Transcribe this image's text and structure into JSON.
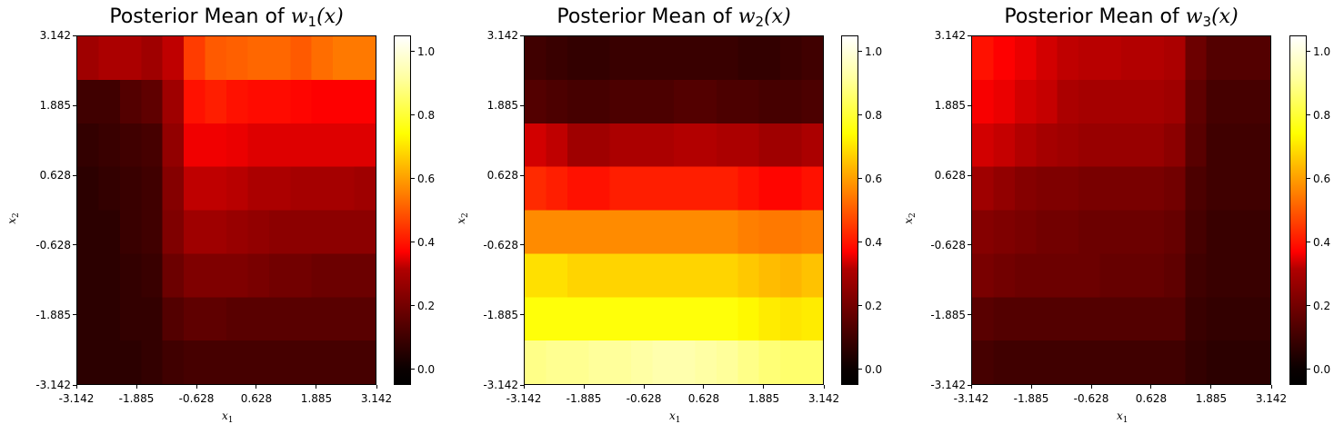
{
  "chart_data": [
    {
      "type": "heatmap",
      "title": "Posterior Mean of w1(x)",
      "title_main": "Posterior Mean of ",
      "title_var": "w",
      "title_sub": "1",
      "title_arg": "(x)",
      "xlabel": "x",
      "xlabel_sub": "1",
      "ylabel": "x",
      "ylabel_sub": "2",
      "xlim": [
        -3.142,
        3.142
      ],
      "ylim": [
        -3.142,
        3.142
      ],
      "xticks": [
        "-3.142",
        "-1.885",
        "-0.628",
        "0.628",
        "1.885",
        "3.142"
      ],
      "yticks": [
        "-3.142",
        "-1.885",
        "-0.628",
        "0.628",
        "1.885",
        "3.142"
      ],
      "colormap": "hot",
      "clim": [
        -0.05,
        1.05
      ],
      "colorbar_ticks": [
        "0.0",
        "0.2",
        "0.4",
        "0.6",
        "0.8",
        "1.0"
      ],
      "rows_top_to_bottom": [
        [
          0.2,
          0.22,
          0.22,
          0.2,
          0.25,
          0.45,
          0.5,
          0.51,
          0.52,
          0.52,
          0.5,
          0.53,
          0.55,
          0.55
        ],
        [
          0.05,
          0.05,
          0.08,
          0.1,
          0.2,
          0.38,
          0.4,
          0.38,
          0.37,
          0.37,
          0.36,
          0.35,
          0.35,
          0.35
        ],
        [
          0.03,
          0.04,
          0.05,
          0.06,
          0.18,
          0.33,
          0.33,
          0.32,
          0.3,
          0.3,
          0.3,
          0.3,
          0.3,
          0.3
        ],
        [
          0.02,
          0.03,
          0.04,
          0.05,
          0.16,
          0.25,
          0.25,
          0.24,
          0.22,
          0.22,
          0.21,
          0.21,
          0.21,
          0.2
        ],
        [
          0.02,
          0.02,
          0.04,
          0.05,
          0.15,
          0.2,
          0.2,
          0.19,
          0.18,
          0.17,
          0.17,
          0.17,
          0.17,
          0.17
        ],
        [
          0.02,
          0.02,
          0.03,
          0.04,
          0.12,
          0.15,
          0.15,
          0.15,
          0.14,
          0.13,
          0.13,
          0.12,
          0.12,
          0.12
        ],
        [
          0.02,
          0.02,
          0.03,
          0.03,
          0.08,
          0.1,
          0.1,
          0.09,
          0.09,
          0.09,
          0.09,
          0.09,
          0.09,
          0.09
        ],
        [
          0.02,
          0.02,
          0.02,
          0.03,
          0.05,
          0.06,
          0.06,
          0.06,
          0.06,
          0.06,
          0.06,
          0.06,
          0.06,
          0.06
        ]
      ]
    },
    {
      "type": "heatmap",
      "title": "Posterior Mean of w2(x)",
      "title_main": "Posterior Mean of ",
      "title_var": "w",
      "title_sub": "2",
      "title_arg": "(x)",
      "xlabel": "x",
      "xlabel_sub": "1",
      "ylabel": "x",
      "ylabel_sub": "2",
      "xlim": [
        -3.142,
        3.142
      ],
      "ylim": [
        -3.142,
        3.142
      ],
      "xticks": [
        "-3.142",
        "-1.885",
        "-0.628",
        "0.628",
        "1.885",
        "3.142"
      ],
      "yticks": [
        "-3.142",
        "-1.885",
        "-0.628",
        "0.628",
        "1.885",
        "3.142"
      ],
      "colormap": "hot",
      "clim": [
        -0.05,
        1.05
      ],
      "colorbar_ticks": [
        "0.0",
        "0.2",
        "0.4",
        "0.6",
        "0.8",
        "1.0"
      ],
      "rows_top_to_bottom": [
        [
          0.05,
          0.04,
          0.03,
          0.03,
          0.04,
          0.04,
          0.04,
          0.04,
          0.04,
          0.04,
          0.03,
          0.03,
          0.04,
          0.05
        ],
        [
          0.08,
          0.07,
          0.06,
          0.06,
          0.07,
          0.07,
          0.07,
          0.08,
          0.08,
          0.07,
          0.07,
          0.06,
          0.06,
          0.07
        ],
        [
          0.28,
          0.25,
          0.2,
          0.2,
          0.22,
          0.22,
          0.22,
          0.23,
          0.23,
          0.22,
          0.22,
          0.2,
          0.2,
          0.22
        ],
        [
          0.42,
          0.4,
          0.38,
          0.38,
          0.4,
          0.4,
          0.4,
          0.4,
          0.4,
          0.4,
          0.38,
          0.36,
          0.36,
          0.38
        ],
        [
          0.58,
          0.58,
          0.58,
          0.58,
          0.58,
          0.58,
          0.58,
          0.58,
          0.58,
          0.58,
          0.56,
          0.55,
          0.55,
          0.56
        ],
        [
          0.72,
          0.72,
          0.7,
          0.7,
          0.7,
          0.7,
          0.7,
          0.7,
          0.7,
          0.7,
          0.68,
          0.66,
          0.65,
          0.67
        ],
        [
          0.78,
          0.78,
          0.78,
          0.78,
          0.78,
          0.78,
          0.78,
          0.78,
          0.78,
          0.78,
          0.76,
          0.74,
          0.73,
          0.74
        ],
        [
          0.92,
          0.93,
          0.93,
          0.94,
          0.94,
          0.95,
          0.96,
          0.96,
          0.95,
          0.94,
          0.92,
          0.9,
          0.89,
          0.89
        ]
      ]
    },
    {
      "type": "heatmap",
      "title": "Posterior Mean of w3(x)",
      "title_main": "Posterior Mean of ",
      "title_var": "w",
      "title_sub": "3",
      "title_arg": "(x)",
      "xlabel": "x",
      "xlabel_sub": "1",
      "ylabel": "x",
      "ylabel_sub": "2",
      "xlim": [
        -3.142,
        3.142
      ],
      "ylim": [
        -3.142,
        3.142
      ],
      "xticks": [
        "-3.142",
        "-1.885",
        "-0.628",
        "0.628",
        "1.885",
        "3.142"
      ],
      "yticks": [
        "-3.142",
        "-1.885",
        "-0.628",
        "0.628",
        "1.885",
        "3.142"
      ],
      "colormap": "hot",
      "clim": [
        -0.05,
        1.05
      ],
      "colorbar_ticks": [
        "0.0",
        "0.2",
        "0.4",
        "0.6",
        "0.8",
        "1.0"
      ],
      "rows_top_to_bottom": [
        [
          0.38,
          0.35,
          0.32,
          0.28,
          0.25,
          0.24,
          0.24,
          0.23,
          0.23,
          0.22,
          0.12,
          0.08,
          0.08,
          0.08
        ],
        [
          0.34,
          0.32,
          0.28,
          0.26,
          0.22,
          0.21,
          0.21,
          0.21,
          0.21,
          0.2,
          0.1,
          0.06,
          0.06,
          0.06
        ],
        [
          0.28,
          0.26,
          0.23,
          0.21,
          0.2,
          0.19,
          0.19,
          0.19,
          0.19,
          0.17,
          0.09,
          0.05,
          0.05,
          0.05
        ],
        [
          0.2,
          0.18,
          0.16,
          0.15,
          0.15,
          0.14,
          0.14,
          0.14,
          0.14,
          0.13,
          0.07,
          0.05,
          0.05,
          0.05
        ],
        [
          0.16,
          0.15,
          0.14,
          0.13,
          0.13,
          0.12,
          0.12,
          0.12,
          0.12,
          0.11,
          0.06,
          0.04,
          0.04,
          0.04
        ],
        [
          0.14,
          0.13,
          0.12,
          0.12,
          0.12,
          0.12,
          0.11,
          0.11,
          0.11,
          0.1,
          0.05,
          0.04,
          0.04,
          0.04
        ],
        [
          0.09,
          0.08,
          0.08,
          0.08,
          0.08,
          0.08,
          0.08,
          0.08,
          0.08,
          0.08,
          0.04,
          0.03,
          0.03,
          0.03
        ],
        [
          0.06,
          0.05,
          0.05,
          0.05,
          0.05,
          0.05,
          0.05,
          0.05,
          0.05,
          0.05,
          0.03,
          0.02,
          0.02,
          0.02
        ]
      ]
    }
  ]
}
